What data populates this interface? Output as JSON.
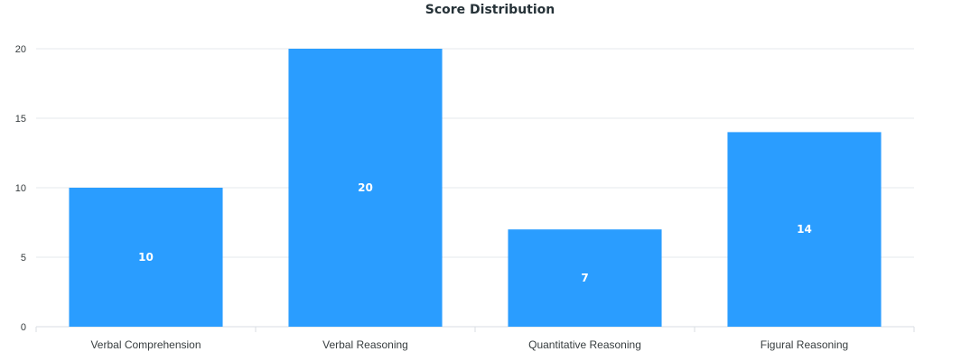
{
  "chart_data": {
    "type": "bar",
    "title": "Score Distribution",
    "categories": [
      "Verbal Comprehension",
      "Verbal Reasoning",
      "Quantitative Reasoning",
      "Figural Reasoning"
    ],
    "values": [
      10,
      20,
      7,
      14
    ],
    "ylim": [
      0,
      20
    ],
    "yticks": [
      0,
      5,
      10,
      15,
      20
    ],
    "xlabel": "",
    "ylabel": "",
    "grid": true,
    "legend": "none",
    "data_labels": true,
    "bar_color": "#2a9dff",
    "grid_color": "#e6e8ec",
    "axis_color": "#d9dde3"
  }
}
